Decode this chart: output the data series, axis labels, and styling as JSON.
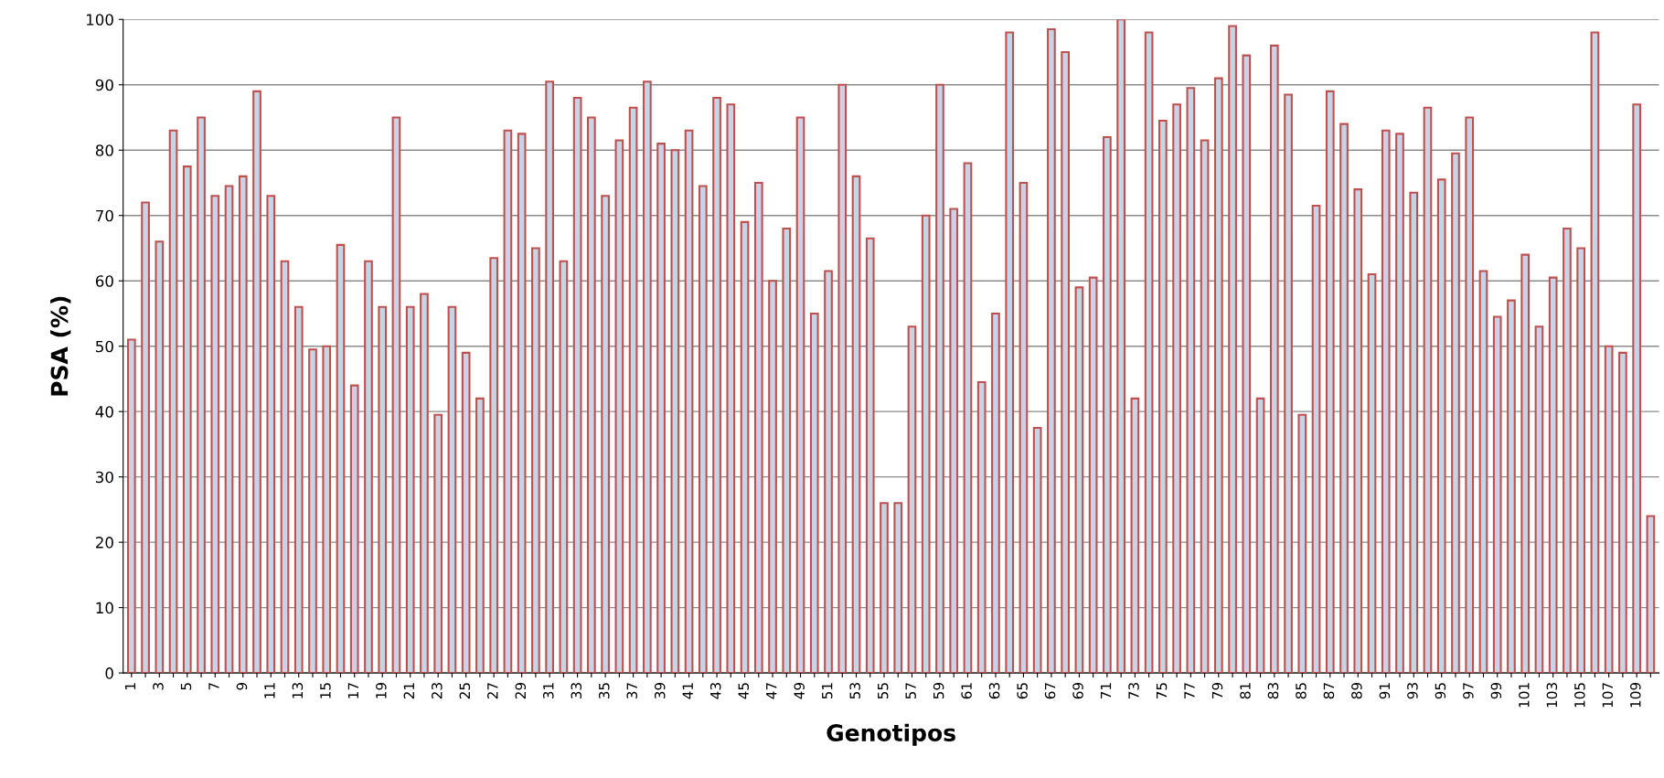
{
  "chart_data": {
    "type": "bar",
    "xlabel": "Genotipos",
    "ylabel": "PSA (%)",
    "categories": [
      "1",
      null,
      "3",
      null,
      "5",
      null,
      "7",
      null,
      "9",
      null,
      "11",
      null,
      "13",
      null,
      "15",
      null,
      "17",
      null,
      "19",
      null,
      "21",
      null,
      "23",
      null,
      "25",
      null,
      "27",
      null,
      "29",
      null,
      "31",
      null,
      "33",
      null,
      "35",
      null,
      "37",
      null,
      "39",
      null,
      "41",
      null,
      "43",
      null,
      "45",
      null,
      "47",
      null,
      "49",
      null,
      "51",
      null,
      "53",
      null,
      "55",
      null,
      "57",
      null,
      "59",
      null,
      "61",
      null,
      "63",
      null,
      "65",
      null,
      "67",
      null,
      "69",
      null,
      "71",
      null,
      "73",
      null,
      "75",
      null,
      "77",
      null,
      "79",
      null,
      "81",
      null,
      "83",
      null,
      "85",
      null,
      "87",
      null,
      "89",
      null,
      "91",
      null,
      "93",
      null,
      "95",
      null,
      "97",
      null,
      "99",
      null,
      "101",
      null,
      "103",
      null,
      "105",
      null,
      "107",
      null,
      "109",
      null
    ],
    "series": [
      {
        "color": "#c0504d",
        "values": [
          51,
          72,
          66,
          83,
          77.5,
          85,
          73,
          74.5,
          76,
          89,
          73,
          63,
          56,
          49.5,
          50,
          65.5,
          44,
          63,
          56,
          85,
          56,
          58,
          39.5,
          56,
          49,
          42,
          63.5,
          83,
          82.5,
          65,
          90.5,
          63,
          88,
          85,
          73,
          81.5,
          86.5,
          90.5,
          81,
          80,
          83,
          74.5,
          88,
          87,
          69,
          75,
          60,
          68,
          85,
          55,
          61.5,
          90,
          76,
          66.5,
          26,
          26,
          53,
          70,
          90,
          71,
          78,
          44.5,
          55,
          98,
          75,
          37.5,
          98.5,
          95,
          59,
          60.5,
          82,
          100,
          42,
          98,
          84.5,
          87,
          89.5,
          81.5,
          91,
          99,
          94.5,
          42,
          96,
          88.5,
          39.5,
          71.5,
          89,
          84,
          74,
          61,
          83,
          82.5,
          73.5,
          86.5,
          75.5,
          79.5,
          85,
          61.5,
          54.5,
          57,
          64,
          53,
          60.5,
          68,
          65,
          98,
          50,
          49,
          87,
          24
        ]
      }
    ],
    "ylim": [
      0,
      100
    ],
    "yticks": [
      0,
      10,
      20,
      30,
      40,
      50,
      60,
      70,
      80,
      90,
      100
    ],
    "grid": "y"
  }
}
